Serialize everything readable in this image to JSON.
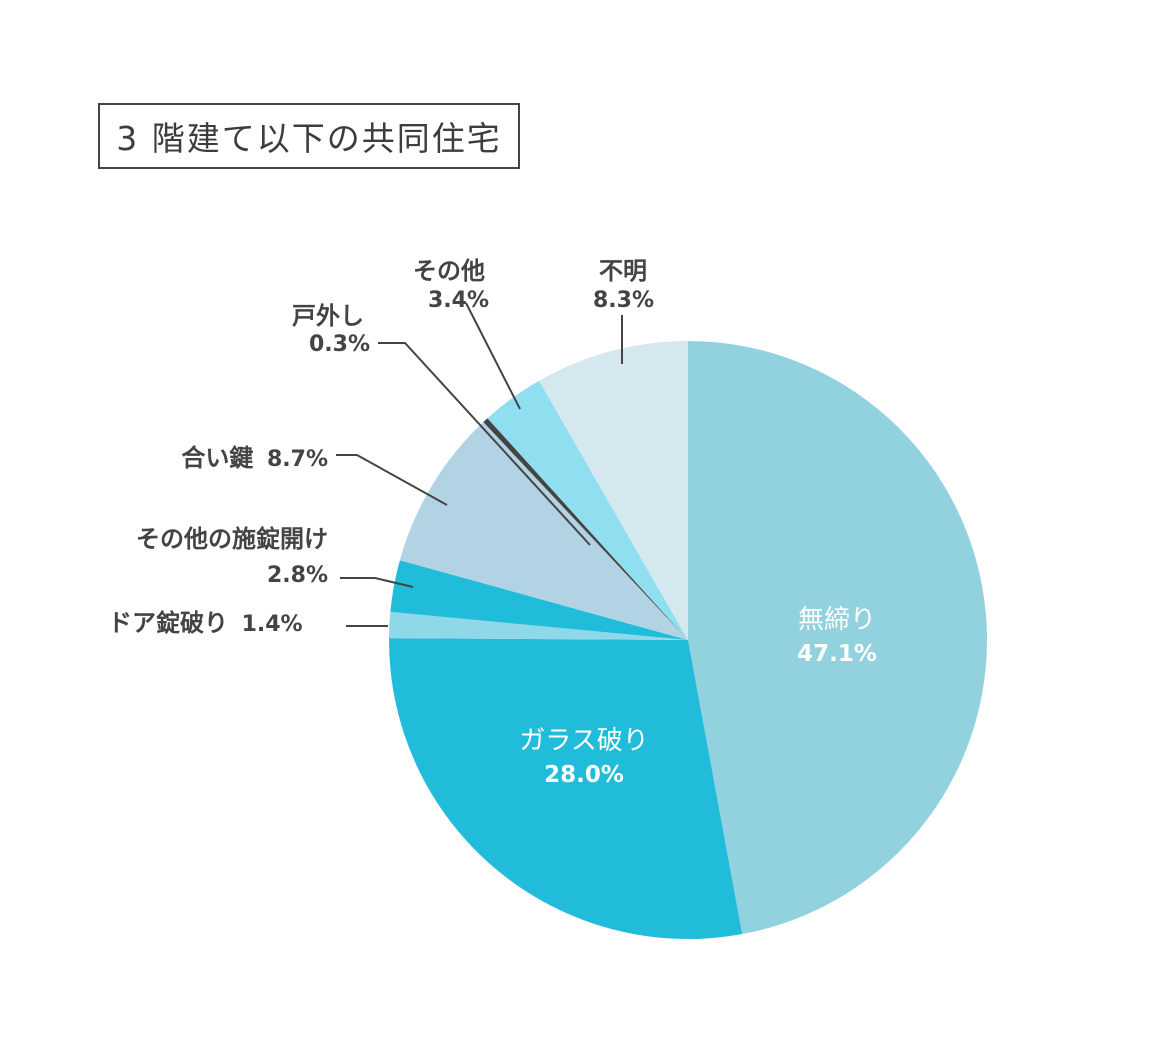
{
  "chart_data": {
    "type": "pie",
    "title": "3 階建て以下の共同住宅",
    "slices": [
      {
        "label": "無締り",
        "value_text": "47.1%",
        "value": 47.1,
        "color": "#92d1de"
      },
      {
        "label": "ガラス破り",
        "value_text": "28.0%",
        "value": 28.0,
        "color": "#22bcdb"
      },
      {
        "label": "ドア錠破り",
        "value_text": "1.4%",
        "value": 1.4,
        "color": "#8fd8e9"
      },
      {
        "label": "その他の施錠開け",
        "value_text": "2.8%",
        "value": 2.8,
        "color": "#22bcdb"
      },
      {
        "label": "合い鍵",
        "value_text": "8.7%",
        "value": 8.7,
        "color": "#b2d3e4"
      },
      {
        "label": "戸外し",
        "value_text": "0.3%",
        "value": 0.3,
        "color": "#444444"
      },
      {
        "label": "その他",
        "value_text": "3.4%",
        "value": 3.4,
        "color": "#8fdff0"
      },
      {
        "label": "不明",
        "value_text": "8.3%",
        "value": 8.3,
        "color": "#d5e7ef"
      }
    ],
    "start_angle": "12 o'clock",
    "direction": "clockwise",
    "legend": "none"
  }
}
